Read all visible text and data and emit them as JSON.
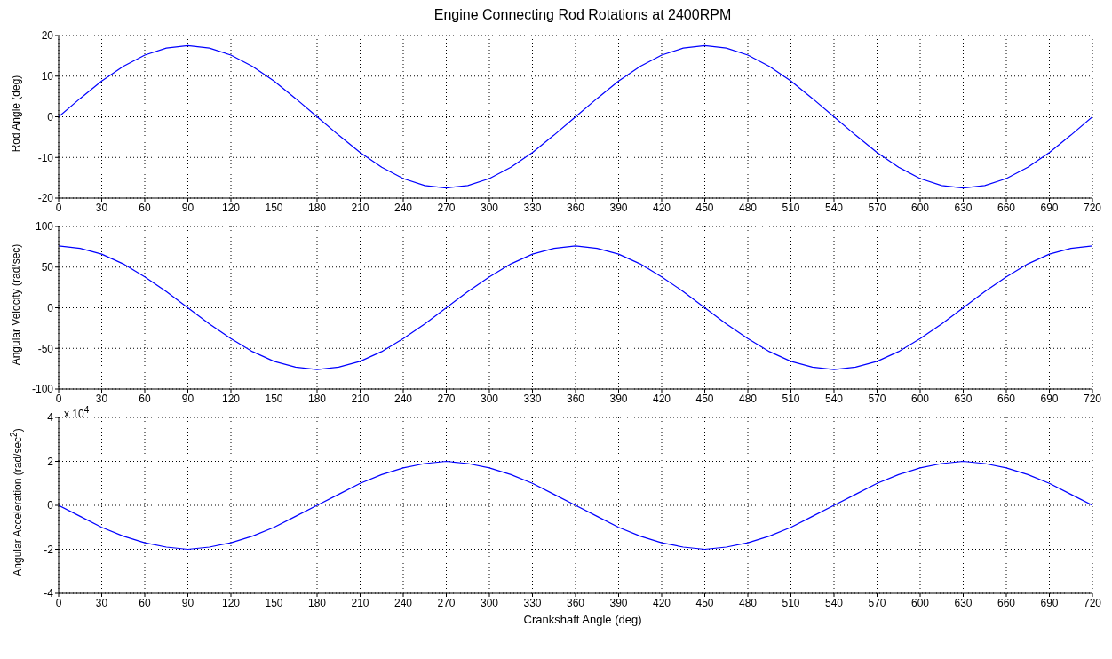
{
  "chart_data": [
    {
      "type": "line",
      "title": "Engine Connecting Rod Rotations at 2400RPM",
      "ylabel": "Rod Angle (deg)",
      "x": [
        0,
        15,
        30,
        45,
        60,
        75,
        90,
        105,
        120,
        135,
        150,
        165,
        180,
        195,
        210,
        225,
        240,
        255,
        270,
        285,
        300,
        315,
        330,
        345,
        360,
        375,
        390,
        405,
        420,
        435,
        450,
        465,
        480,
        495,
        510,
        525,
        540,
        555,
        570,
        585,
        600,
        615,
        630,
        645,
        660,
        675,
        690,
        705,
        720
      ],
      "series": [
        {
          "color": "#0000ff",
          "values": [
            0,
            4.5,
            8.8,
            12.4,
            15.2,
            16.9,
            17.5,
            16.9,
            15.2,
            12.4,
            8.8,
            4.5,
            0,
            -4.5,
            -8.8,
            -12.4,
            -15.2,
            -16.9,
            -17.5,
            -16.9,
            -15.2,
            -12.4,
            -8.8,
            -4.5,
            0,
            4.5,
            8.8,
            12.4,
            15.2,
            16.9,
            17.5,
            16.9,
            15.2,
            12.4,
            8.8,
            4.5,
            0,
            -4.5,
            -8.8,
            -12.4,
            -15.2,
            -16.9,
            -17.5,
            -16.9,
            -15.2,
            -12.4,
            -8.8,
            -4.5,
            0
          ]
        }
      ],
      "xlim": [
        0,
        720
      ],
      "xticks": [
        0,
        30,
        60,
        90,
        120,
        150,
        180,
        210,
        240,
        270,
        300,
        330,
        360,
        390,
        420,
        450,
        480,
        510,
        540,
        570,
        600,
        630,
        660,
        690,
        720
      ],
      "ylim": [
        -20,
        20
      ],
      "yticks": [
        -20,
        -10,
        0,
        10,
        20
      ],
      "grid": true
    },
    {
      "type": "line",
      "ylabel": "Angular Velocity (rad/sec)",
      "x": [
        0,
        15,
        30,
        45,
        60,
        75,
        90,
        105,
        120,
        135,
        150,
        165,
        180,
        195,
        210,
        225,
        240,
        255,
        270,
        285,
        300,
        315,
        330,
        345,
        360,
        375,
        390,
        405,
        420,
        435,
        450,
        465,
        480,
        495,
        510,
        525,
        540,
        555,
        570,
        585,
        600,
        615,
        630,
        645,
        660,
        675,
        690,
        705,
        720
      ],
      "series": [
        {
          "color": "#0000ff",
          "values": [
            76,
            73,
            66,
            54,
            38,
            20,
            0,
            -20,
            -38,
            -54,
            -66,
            -73,
            -76,
            -73,
            -66,
            -54,
            -38,
            -20,
            0,
            20,
            38,
            54,
            66,
            73,
            76,
            73,
            66,
            54,
            38,
            20,
            0,
            -20,
            -38,
            -54,
            -66,
            -73,
            -76,
            -73,
            -66,
            -54,
            -38,
            -20,
            0,
            20,
            38,
            54,
            66,
            73,
            76
          ]
        }
      ],
      "xlim": [
        0,
        720
      ],
      "xticks": [
        0,
        30,
        60,
        90,
        120,
        150,
        180,
        210,
        240,
        270,
        300,
        330,
        360,
        390,
        420,
        450,
        480,
        510,
        540,
        570,
        600,
        630,
        660,
        690,
        720
      ],
      "ylim": [
        -100,
        100
      ],
      "yticks": [
        -100,
        -50,
        0,
        50,
        100
      ],
      "grid": true
    },
    {
      "type": "line",
      "ylabel": "Angular Acceleration (rad/sec$^{2}$)",
      "xlabel": "Crankshaft Angle (deg)",
      "annotations": [
        "x 10$^{4}$"
      ],
      "x": [
        0,
        15,
        30,
        45,
        60,
        75,
        90,
        105,
        120,
        135,
        150,
        165,
        180,
        195,
        210,
        225,
        240,
        255,
        270,
        285,
        300,
        315,
        330,
        345,
        360,
        375,
        390,
        405,
        420,
        435,
        450,
        465,
        480,
        495,
        510,
        525,
        540,
        555,
        570,
        585,
        600,
        615,
        630,
        645,
        660,
        675,
        690,
        705,
        720
      ],
      "series": [
        {
          "color": "#0000ff",
          "values": [
            0,
            -0.5,
            -1,
            -1.4,
            -1.7,
            -1.9,
            -2,
            -1.9,
            -1.7,
            -1.4,
            -1,
            -0.5,
            0,
            0.5,
            1,
            1.4,
            1.7,
            1.9,
            2,
            1.9,
            1.7,
            1.4,
            1,
            0.5,
            0,
            -0.5,
            -1,
            -1.4,
            -1.7,
            -1.9,
            -2,
            -1.9,
            -1.7,
            -1.4,
            -1,
            -0.5,
            0,
            0.5,
            1,
            1.4,
            1.7,
            1.9,
            2,
            1.9,
            1.7,
            1.4,
            1,
            0.5,
            0
          ]
        }
      ],
      "xlim": [
        0,
        720
      ],
      "xticks": [
        0,
        30,
        60,
        90,
        120,
        150,
        180,
        210,
        240,
        270,
        300,
        330,
        360,
        390,
        420,
        450,
        480,
        510,
        540,
        570,
        600,
        630,
        660,
        690,
        720
      ],
      "ylim": [
        -4,
        4
      ],
      "yticks": [
        -4,
        -2,
        0,
        2,
        4
      ],
      "grid": true
    }
  ]
}
